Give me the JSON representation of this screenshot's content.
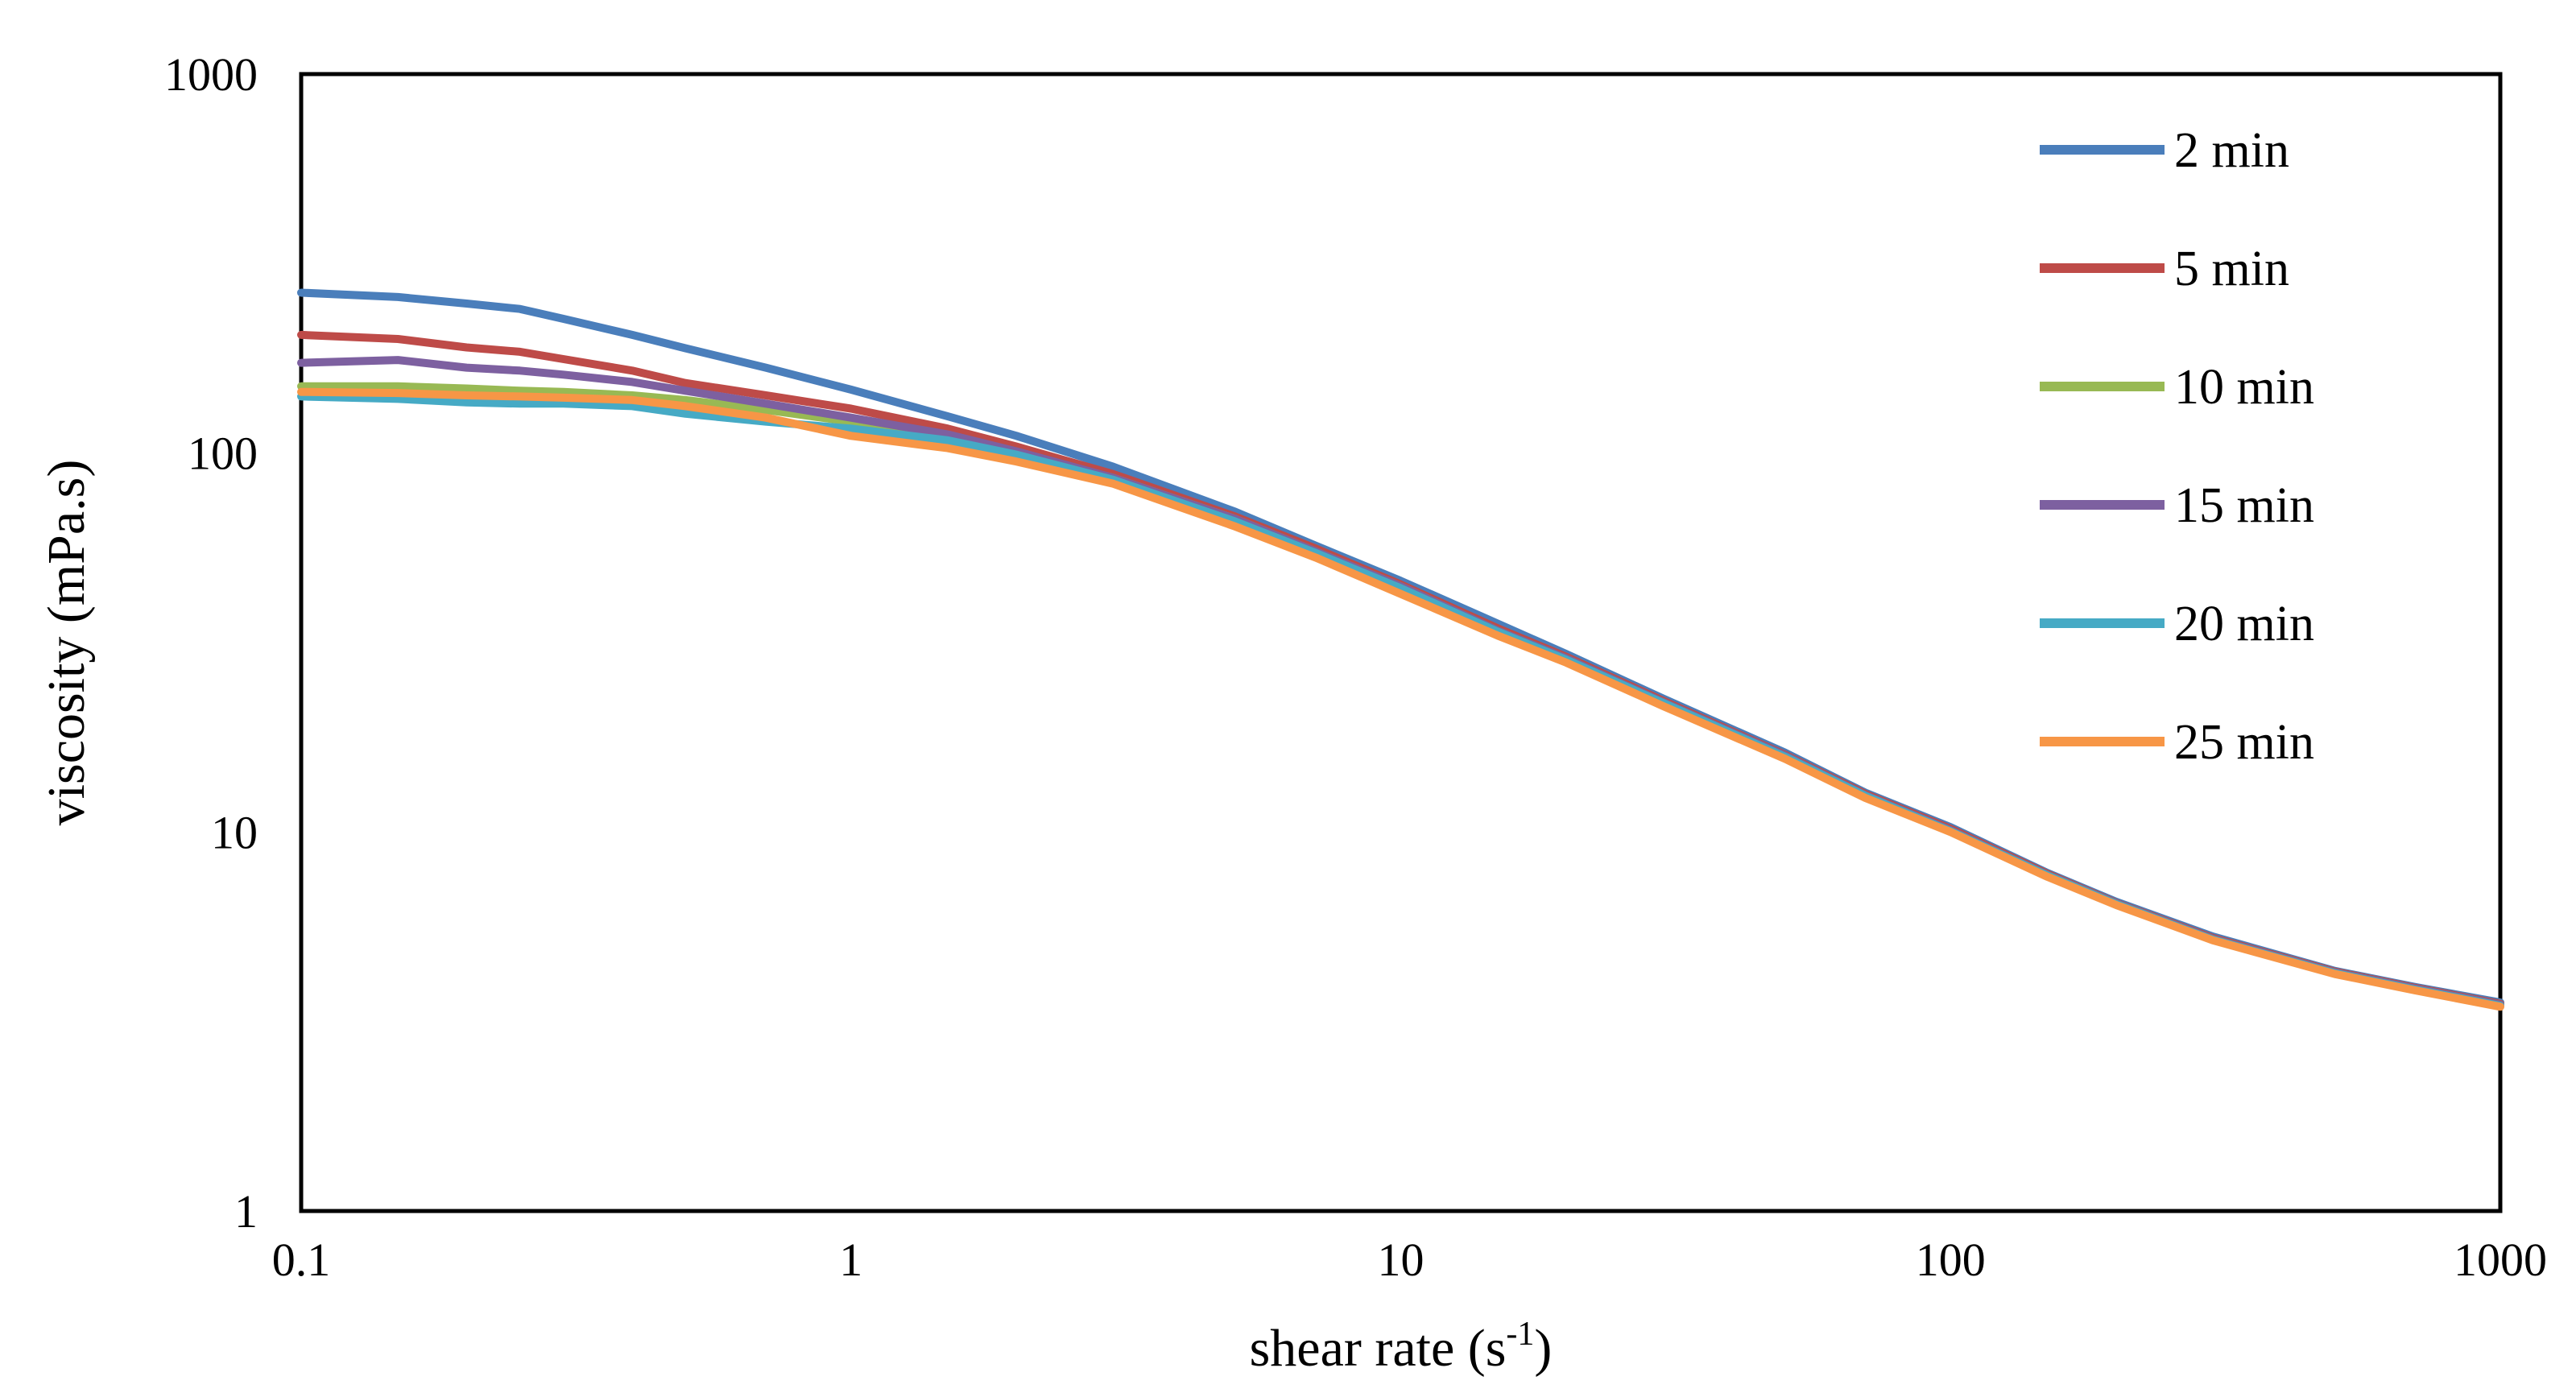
{
  "chart_data": {
    "type": "line",
    "title": "",
    "xlabel": "shear rate (s",
    "xlabel_sup": "-1",
    "xlabel_end": ")",
    "ylabel": "viscosity (mPa.s)",
    "xscale": "log",
    "yscale": "log",
    "xlim": [
      0.1,
      1000
    ],
    "ylim": [
      1,
      1000
    ],
    "xticks": [
      {
        "value": 0.1,
        "label": "0.1"
      },
      {
        "value": 1,
        "label": "1"
      },
      {
        "value": 10,
        "label": "10"
      },
      {
        "value": 100,
        "label": "100"
      },
      {
        "value": 1000,
        "label": "1000"
      }
    ],
    "yticks": [
      {
        "value": 1,
        "label": "1"
      },
      {
        "value": 10,
        "label": "10"
      },
      {
        "value": 100,
        "label": "100"
      },
      {
        "value": 1000,
        "label": "1000"
      }
    ],
    "grid": false,
    "legend_position": "top-right",
    "x": [
      0.1,
      0.15,
      0.2,
      0.25,
      0.3,
      0.4,
      0.5,
      0.7,
      1,
      1.5,
      2,
      3,
      5,
      7,
      10,
      15,
      20,
      30,
      50,
      70,
      100,
      150,
      200,
      300,
      500,
      700,
      1000
    ],
    "series": [
      {
        "name": "2 min",
        "color": "#4a7ebb",
        "values": [
          265,
          258,
          248,
          240,
          226,
          205,
          189,
          168,
          147,
          125,
          111,
          92,
          70,
          57,
          46,
          35.5,
          29.5,
          22.5,
          16.2,
          12.7,
          10.3,
          7.8,
          6.55,
          5.3,
          4.3,
          3.9,
          3.55
        ]
      },
      {
        "name": "5 min",
        "color": "#be4b48",
        "values": [
          205,
          200,
          190,
          185,
          177,
          165,
          153,
          142,
          131,
          116,
          104,
          88,
          68,
          56,
          45,
          34.5,
          29,
          22.2,
          16,
          12.6,
          10.2,
          7.75,
          6.5,
          5.25,
          4.28,
          3.88,
          3.52
        ]
      },
      {
        "name": "10 min",
        "color": "#98b954",
        "values": [
          150,
          150,
          148,
          146,
          145,
          142,
          138,
          130,
          121,
          110,
          100,
          86,
          67,
          55,
          44.5,
          34,
          28.7,
          22,
          15.9,
          12.5,
          10.1,
          7.7,
          6.48,
          5.22,
          4.26,
          3.86,
          3.5
        ]
      },
      {
        "name": "15 min",
        "color": "#7d60a0",
        "values": [
          173,
          176,
          168,
          165,
          161,
          154,
          146,
          135,
          124,
          112,
          101,
          86,
          67,
          55,
          44.5,
          34,
          28.7,
          22,
          15.9,
          12.5,
          10.1,
          7.7,
          6.48,
          5.22,
          4.26,
          3.86,
          3.5
        ]
      },
      {
        "name": "20 min",
        "color": "#46aac5",
        "values": [
          141,
          139,
          136,
          135,
          135,
          133,
          127,
          121,
          116,
          108,
          99,
          85,
          66,
          54.5,
          44,
          33.8,
          28.5,
          21.9,
          15.8,
          12.45,
          10.05,
          7.68,
          6.46,
          5.2,
          4.24,
          3.84,
          3.48
        ]
      },
      {
        "name": "25 min",
        "color": "#f79646",
        "values": [
          145,
          144,
          142,
          141,
          140,
          138,
          133,
          124,
          111,
          103,
          95,
          83,
          64,
          53,
          42.5,
          33,
          28,
          21.5,
          15.6,
          12.3,
          10,
          7.62,
          6.42,
          5.18,
          4.22,
          3.82,
          3.46
        ]
      }
    ]
  }
}
